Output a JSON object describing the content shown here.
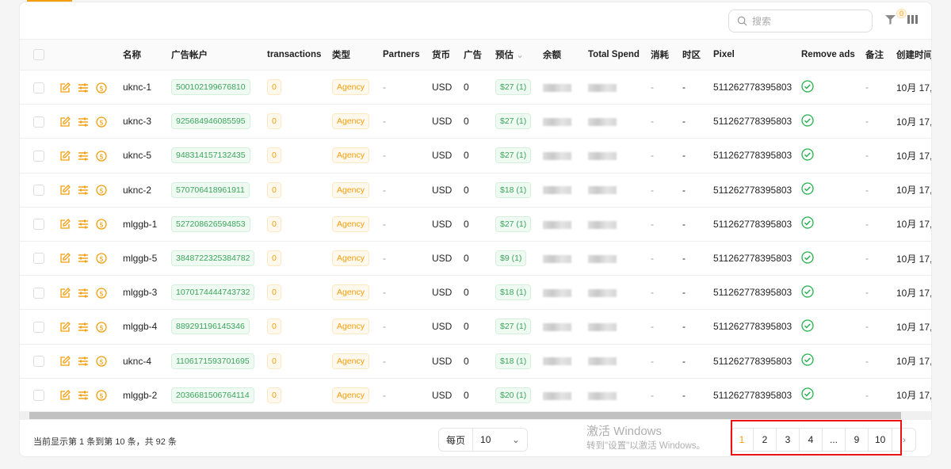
{
  "toolbar": {
    "search_placeholder": "搜索",
    "filter_count": "0"
  },
  "columns": [
    "名称",
    "广告帐户",
    "transactions",
    "类型",
    "Partners",
    "货币",
    "广告",
    "预估",
    "余额",
    "Total Spend",
    "消耗",
    "时区",
    "Pixel",
    "Remove ads",
    "备注",
    "创建时间"
  ],
  "rows": [
    {
      "name": "uknc-1",
      "account": "500102199676810",
      "transactions": "0",
      "type": "Agency",
      "partners": "-",
      "currency": "USD",
      "ads": "0",
      "estimate": "$27 (1)",
      "consume": "-",
      "timezone": "-",
      "pixel": "511262778395803",
      "note": "-",
      "created": "10月 17, 2"
    },
    {
      "name": "uknc-3",
      "account": "925684946085595",
      "transactions": "0",
      "type": "Agency",
      "partners": "-",
      "currency": "USD",
      "ads": "0",
      "estimate": "$27 (1)",
      "consume": "-",
      "timezone": "-",
      "pixel": "511262778395803",
      "note": "-",
      "created": "10月 17, 2"
    },
    {
      "name": "uknc-5",
      "account": "948314157132435",
      "transactions": "0",
      "type": "Agency",
      "partners": "-",
      "currency": "USD",
      "ads": "0",
      "estimate": "$27 (1)",
      "consume": "-",
      "timezone": "-",
      "pixel": "511262778395803",
      "note": "-",
      "created": "10月 17, 2"
    },
    {
      "name": "uknc-2",
      "account": "570706418961911",
      "transactions": "0",
      "type": "Agency",
      "partners": "-",
      "currency": "USD",
      "ads": "0",
      "estimate": "$18 (1)",
      "consume": "-",
      "timezone": "-",
      "pixel": "511262778395803",
      "note": "-",
      "created": "10月 17, 2"
    },
    {
      "name": "mlggb-1",
      "account": "527208626594853",
      "transactions": "0",
      "type": "Agency",
      "partners": "-",
      "currency": "USD",
      "ads": "0",
      "estimate": "$27 (1)",
      "consume": "-",
      "timezone": "-",
      "pixel": "511262778395803",
      "note": "-",
      "created": "10月 17, 2"
    },
    {
      "name": "mlggb-5",
      "account": "3848722325384782",
      "transactions": "0",
      "type": "Agency",
      "partners": "-",
      "currency": "USD",
      "ads": "0",
      "estimate": "$9 (1)",
      "consume": "-",
      "timezone": "-",
      "pixel": "511262778395803",
      "note": "-",
      "created": "10月 17, 2"
    },
    {
      "name": "mlggb-3",
      "account": "1070174444743732",
      "transactions": "0",
      "type": "Agency",
      "partners": "-",
      "currency": "USD",
      "ads": "0",
      "estimate": "$18 (1)",
      "consume": "-",
      "timezone": "-",
      "pixel": "511262778395803",
      "note": "-",
      "created": "10月 17, 2"
    },
    {
      "name": "mlggb-4",
      "account": "889291196145346",
      "transactions": "0",
      "type": "Agency",
      "partners": "-",
      "currency": "USD",
      "ads": "0",
      "estimate": "$27 (1)",
      "consume": "-",
      "timezone": "-",
      "pixel": "511262778395803",
      "note": "-",
      "created": "10月 17, 2"
    },
    {
      "name": "uknc-4",
      "account": "1106171593701695",
      "transactions": "0",
      "type": "Agency",
      "partners": "-",
      "currency": "USD",
      "ads": "0",
      "estimate": "$18 (1)",
      "consume": "-",
      "timezone": "-",
      "pixel": "511262778395803",
      "note": "-",
      "created": "10月 17, 2"
    },
    {
      "name": "mlggb-2",
      "account": "2036681506764114",
      "transactions": "0",
      "type": "Agency",
      "partners": "-",
      "currency": "USD",
      "ads": "0",
      "estimate": "$20 (1)",
      "consume": "-",
      "timezone": "-",
      "pixel": "511262778395803",
      "note": "-",
      "created": "10月 17, 2"
    }
  ],
  "footer": {
    "summary": "当前显示第 1 条到第 10 条，共 92 条",
    "per_page_label": "每页",
    "per_page_value": "10",
    "pages": [
      "1",
      "2",
      "3",
      "4",
      "...",
      "9",
      "10"
    ],
    "current_page": "1"
  },
  "watermark": {
    "line1": "激活 Windows",
    "line2": "转到\"设置\"以激活 Windows。"
  },
  "colors": {
    "accent": "#f59e0b",
    "green": "#3ca55c",
    "highlight": "#e11111"
  }
}
